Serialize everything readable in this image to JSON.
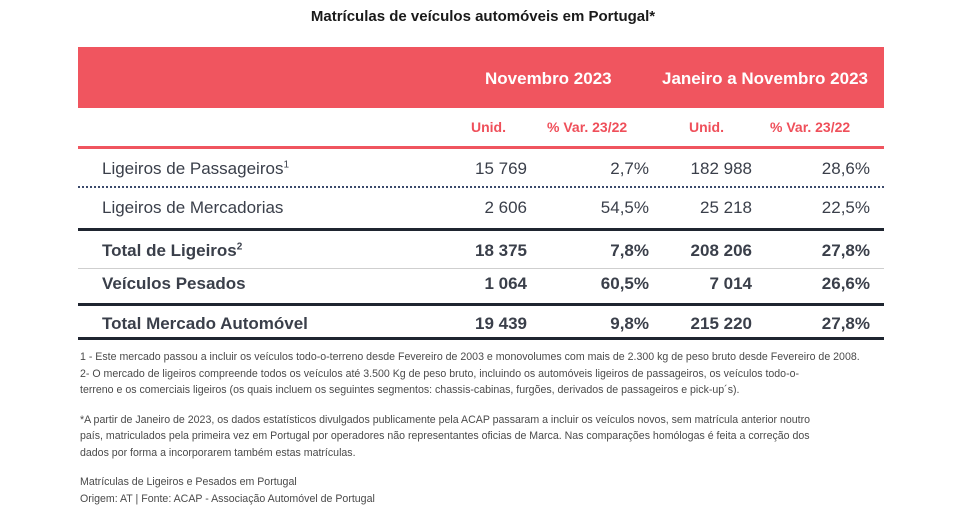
{
  "title": "Matrículas de veículos automóveis em Portugal*",
  "table": {
    "groups": [
      "Novembro 2023",
      "Janeiro a Novembro 2023"
    ],
    "subheaders": [
      "Unid.",
      "% Var. 23/22",
      "Unid.",
      "% Var. 23/22"
    ],
    "rows": [
      {
        "label": "Ligeiros de Passageiros",
        "sup": "1",
        "values": [
          "15 769",
          "2,7%",
          "182 988",
          "28,6%"
        ]
      },
      {
        "label": "Ligeiros de Mercadorias",
        "sup": "",
        "values": [
          "2 606",
          "54,5%",
          "25 218",
          "22,5%"
        ]
      },
      {
        "label": "Total de Ligeiros",
        "sup": "2",
        "values": [
          "18 375",
          "7,8%",
          "208 206",
          "27,8%"
        ]
      },
      {
        "label": "Veículos Pesados",
        "sup": "",
        "values": [
          "1 064",
          "60,5%",
          "7 014",
          "26,6%"
        ]
      },
      {
        "label": "Total Mercado Automóvel",
        "sup": "",
        "values": [
          "19 439",
          "9,8%",
          "215 220",
          "27,8%"
        ]
      }
    ]
  },
  "notes": {
    "n1": "1 - Este mercado passou a incluir os veículos todo-o-terreno desde Fevereiro de 2003 e monovolumes com mais de 2.300 kg de peso bruto desde Fevereiro de 2008.",
    "n2a": "2- O mercado de ligeiros compreende todos os veículos até 3.500 Kg de peso bruto, incluindo os automóveis ligeiros de passageiros, os veículos todo-o-",
    "n2b": "terreno e os comerciais ligeiros (os quais incluem os seguintes segmentos: chassis-cabinas, furgões, derivados de passageiros e pick-up´s).",
    "star_a": "*A partir de Janeiro de 2023, os dados estatísticos divulgados publicamente pela ACAP passaram a incluir os veículos novos, sem matrícula anterior noutro",
    "star_b": "país, matriculados pela primeira vez em Portugal por operadores não representantes oficias de Marca. Nas comparações homólogas é feita a correção dos",
    "star_c": "dados por forma a incorporarem também estas matrículas.",
    "src_a": "Matrículas de Ligeiros e Pesados em Portugal",
    "src_b": "Origem: AT | Fonte: ACAP - Associação Automóvel de Portugal"
  }
}
